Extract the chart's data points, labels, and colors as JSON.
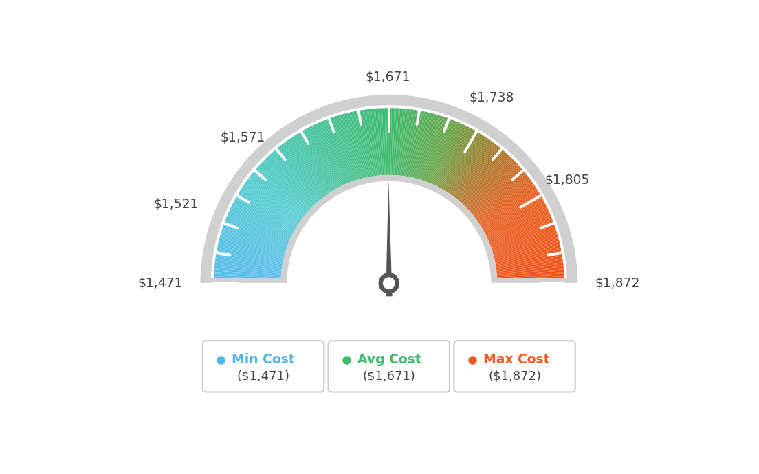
{
  "min_val": 1471,
  "max_val": 1872,
  "avg_val": 1671,
  "tick_labels": [
    "$1,471",
    "$1,521",
    "$1,571",
    "$1,671",
    "$1,738",
    "$1,805",
    "$1,872"
  ],
  "tick_values": [
    1471,
    1521,
    1571,
    1671,
    1738,
    1805,
    1872
  ],
  "legend_min_label": "Min Cost",
  "legend_avg_label": "Avg Cost",
  "legend_max_label": "Max Cost",
  "legend_min_val": "($1,471)",
  "legend_avg_val": "($1,671)",
  "legend_max_val": "($1,872)",
  "color_min": "#4db8e8",
  "color_avg": "#3dba6e",
  "color_max": "#f05a22",
  "bg_color": "#ffffff",
  "needle_color": "#555555",
  "color_stops": [
    [
      0.0,
      [
        0.35,
        0.73,
        0.93
      ]
    ],
    [
      0.2,
      [
        0.33,
        0.8,
        0.82
      ]
    ],
    [
      0.38,
      [
        0.27,
        0.76,
        0.58
      ]
    ],
    [
      0.5,
      [
        0.24,
        0.73,
        0.43
      ]
    ],
    [
      0.62,
      [
        0.4,
        0.65,
        0.28
      ]
    ],
    [
      0.72,
      [
        0.68,
        0.47,
        0.17
      ]
    ],
    [
      0.82,
      [
        0.91,
        0.38,
        0.13
      ]
    ],
    [
      1.0,
      [
        0.94,
        0.32,
        0.1
      ]
    ]
  ]
}
